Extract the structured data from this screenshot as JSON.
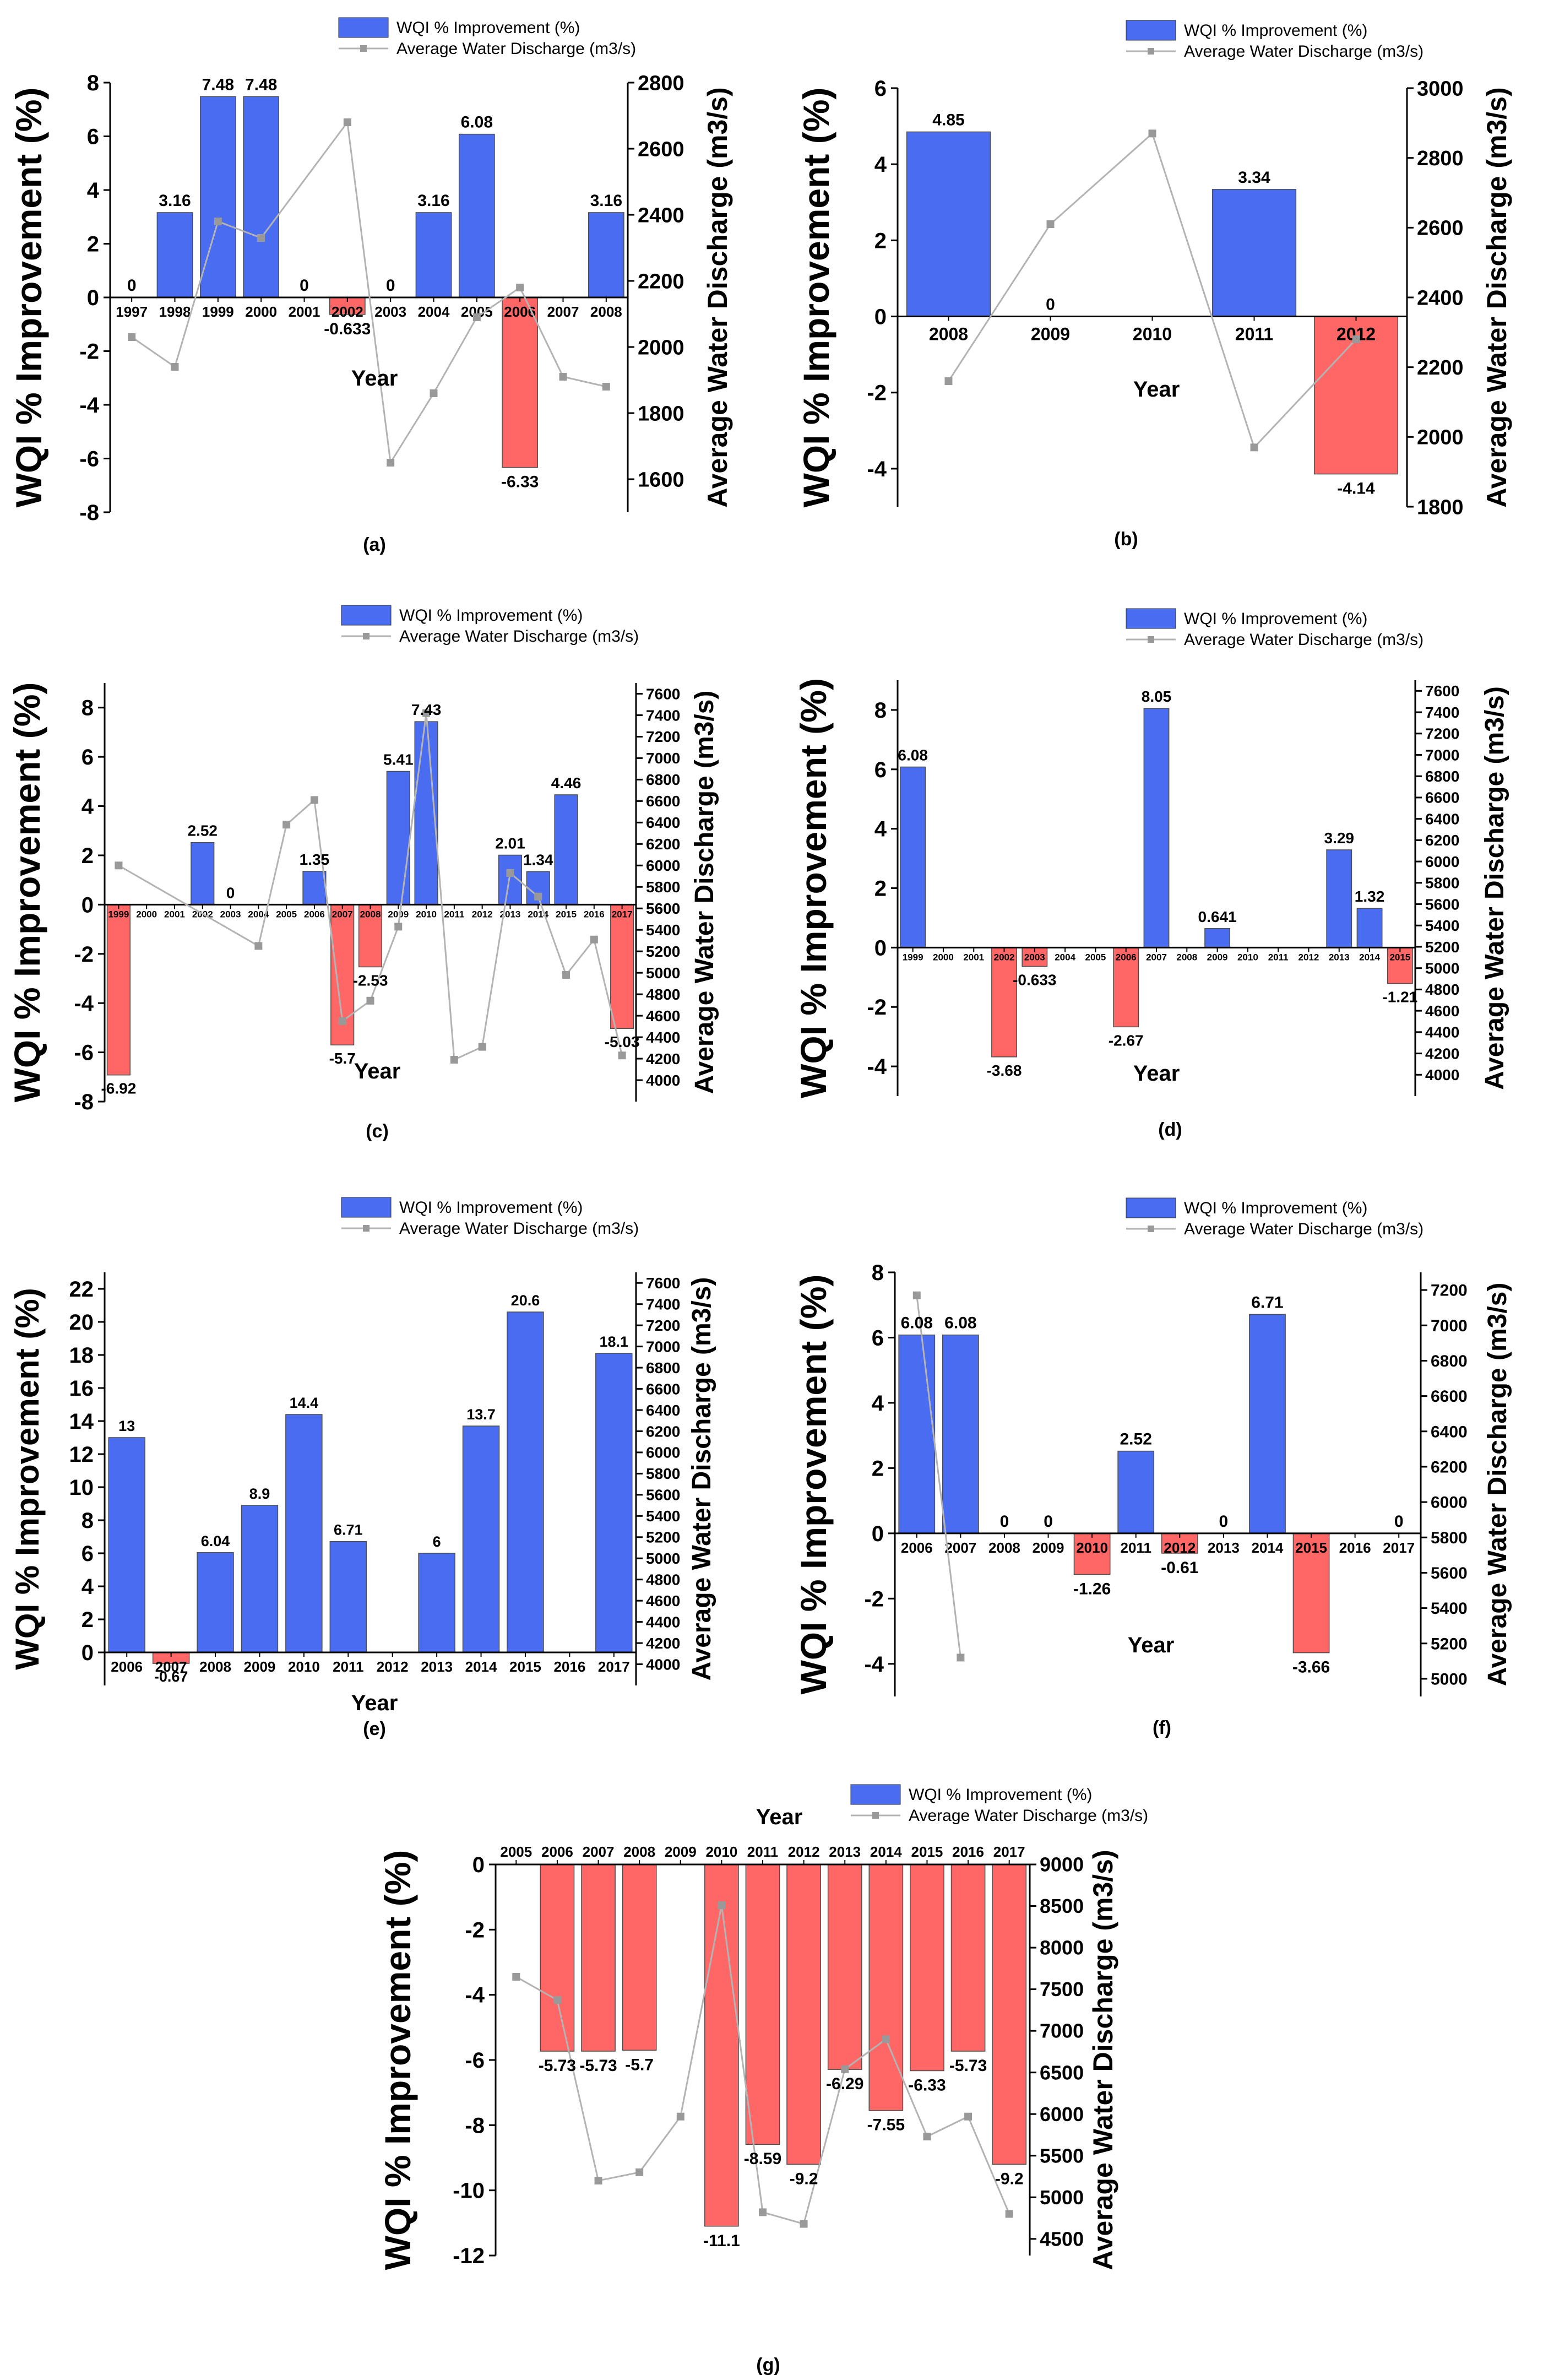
{
  "colors": {
    "positive_bar": "#4a6cf0",
    "negative_bar": "#ff6666",
    "line": "#b3b3b3",
    "marker": "#999999",
    "axis": "#000000",
    "right_axis": "#000000"
  },
  "chart_data": [
    {
      "panel": "(a)",
      "type": "bar+line",
      "legend": [
        "WQI % Improvement (%)",
        "Average Water Discharge (m3/s)"
      ],
      "xlabel": "Year",
      "ylabel": "WQI % Improvement (%)",
      "y2label": "Average Water Discharge (m3/s)",
      "categories": [
        "1997",
        "1998",
        "1999",
        "2000",
        "2001",
        "2002",
        "2003",
        "2004",
        "2005",
        "2006",
        "2007",
        "2008"
      ],
      "values": [
        0,
        3.16,
        7.48,
        7.48,
        0,
        -0.633,
        0,
        3.16,
        6.08,
        -6.33,
        null,
        3.16
      ],
      "bar_labels": [
        "0",
        "3.16",
        "7.48",
        "7.48",
        "0",
        "-0.633",
        "0",
        "3.16",
        "6.08",
        "-6.33",
        "",
        "3.16"
      ],
      "discharge": [
        2030,
        1940,
        2380,
        2330,
        null,
        2680,
        1650,
        1860,
        2090,
        2180,
        1910,
        1880
      ],
      "ylim": [
        -8,
        8
      ],
      "yticks": [
        "-8",
        "-6",
        "-4",
        "-2",
        "0",
        "2",
        "4",
        "6",
        "8"
      ],
      "y2lim": [
        1500,
        2800
      ],
      "y2ticks": [
        "1600",
        "1800",
        "2000",
        "2200",
        "2400",
        "2600",
        "2800"
      ]
    },
    {
      "panel": "(b)",
      "type": "bar+line",
      "legend": [
        "WQI % Improvement (%)",
        "Average Water Discharge (m3/s)"
      ],
      "xlabel": "Year",
      "ylabel": "WQI % Improvement (%)",
      "y2label": "Average Water Discharge (m3/s)",
      "categories": [
        "2008",
        "2009",
        "2010",
        "2011",
        "2012"
      ],
      "values": [
        4.85,
        0,
        null,
        3.34,
        -4.14
      ],
      "bar_labels": [
        "4.85",
        "0",
        "",
        "3.34",
        "-4.14"
      ],
      "discharge": [
        2160,
        2610,
        2870,
        1970,
        2280
      ],
      "ylim": [
        -5,
        6
      ],
      "yticks": [
        "-4",
        "-2",
        "0",
        "2",
        "4",
        "6"
      ],
      "y2lim": [
        1800,
        3000
      ],
      "y2ticks": [
        "1800",
        "2000",
        "2200",
        "2400",
        "2600",
        "2800",
        "3000"
      ]
    },
    {
      "panel": "(c)",
      "type": "bar+line",
      "legend": [
        "WQI % Improvement (%)",
        "Average Water Discharge (m3/s)"
      ],
      "xlabel": "Year",
      "ylabel": "WQI % Improvement (%)",
      "y2label": "Average Water Discharge (m3/s)",
      "categories": [
        "1999",
        "2000",
        "2001",
        "2002",
        "2003",
        "2004",
        "2005",
        "2006",
        "2007",
        "2008",
        "2009",
        "2010",
        "2011",
        "2012",
        "2013",
        "2014",
        "2015",
        "2016",
        "2017"
      ],
      "values": [
        -6.92,
        null,
        null,
        2.52,
        0,
        null,
        null,
        1.35,
        -5.7,
        -2.53,
        5.41,
        7.43,
        null,
        null,
        2.01,
        1.34,
        4.46,
        null,
        -5.03
      ],
      "bar_labels": [
        "-6.92",
        "",
        "",
        "2.52",
        "0",
        "",
        "",
        "1.35",
        "-5.7",
        "-2.53",
        "5.41",
        "7.43",
        "",
        "",
        "2.01",
        "1.34",
        "4.46",
        "",
        "-5.03"
      ],
      "discharge": [
        6000,
        null,
        null,
        null,
        null,
        5250,
        6380,
        6610,
        4550,
        4740,
        5430,
        7420,
        4190,
        4310,
        5930,
        5710,
        4980,
        5310,
        4230
      ],
      "ylim": [
        -8,
        9
      ],
      "yticks": [
        "-8",
        "-6",
        "-4",
        "-2",
        "0",
        "2",
        "4",
        "6",
        "8"
      ],
      "y2lim": [
        3800,
        7700
      ],
      "y2ticks": [
        "4000",
        "4200",
        "4400",
        "4600",
        "4800",
        "5000",
        "5200",
        "5400",
        "5600",
        "5800",
        "6000",
        "6200",
        "6400",
        "6600",
        "6800",
        "7000",
        "7200",
        "7400",
        "7600"
      ]
    },
    {
      "panel": "(d)",
      "type": "bar+line",
      "legend": [
        "WQI % Improvement (%)",
        "Average Water Discharge (m3/s)"
      ],
      "xlabel": "Year",
      "ylabel": "WQI % Improvement (%)",
      "y2label": "Average Water Discharge (m3/s)",
      "categories": [
        "1999",
        "2000",
        "2001",
        "2002",
        "2003",
        "2004",
        "2005",
        "2006",
        "2007",
        "2008",
        "2009",
        "2010",
        "2011",
        "2012",
        "2013",
        "2014",
        "2015"
      ],
      "values": [
        6.08,
        null,
        null,
        -3.68,
        -0.633,
        null,
        null,
        -2.67,
        8.05,
        null,
        0.641,
        null,
        null,
        null,
        3.29,
        1.32,
        -1.21
      ],
      "bar_labels": [
        "6.08",
        "",
        "",
        "-3.68",
        "-0.633",
        "",
        "",
        "-2.67",
        "8.05",
        "",
        "0.641",
        "",
        "",
        "",
        "3.29",
        "1.32",
        "-1.21"
      ],
      "discharge": [],
      "ylim": [
        -5,
        9
      ],
      "yticks": [
        "-4",
        "-2",
        "0",
        "2",
        "4",
        "6",
        "8"
      ],
      "y2lim": [
        3800,
        7700
      ],
      "y2ticks": [
        "4000",
        "4200",
        "4400",
        "4600",
        "4800",
        "5000",
        "5200",
        "5400",
        "5600",
        "5800",
        "6000",
        "6200",
        "6400",
        "6600",
        "6800",
        "7000",
        "7200",
        "7400",
        "7600"
      ]
    },
    {
      "panel": "(e)",
      "type": "bar+line",
      "legend": [
        "WQI % Improvement (%)",
        "Average Water Discharge (m3/s)"
      ],
      "xlabel": "Year",
      "ylabel": "WQI % Improvement (%)",
      "y2label": "Average Water Discharge (m3/s)",
      "categories": [
        "2006",
        "2007",
        "2008",
        "2009",
        "2010",
        "2011",
        "2012",
        "2013",
        "2014",
        "2015",
        "2016",
        "2017"
      ],
      "values": [
        13,
        -0.67,
        6.04,
        8.9,
        14.4,
        6.71,
        null,
        6,
        13.7,
        20.6,
        null,
        18.1
      ],
      "bar_labels": [
        "13",
        "-0.67",
        "6.04",
        "8.9",
        "14.4",
        "6.71",
        "",
        "6",
        "13.7",
        "20.6",
        "",
        "18.1"
      ],
      "discharge": [],
      "ylim": [
        -2,
        23
      ],
      "yticks": [
        "0",
        "2",
        "4",
        "6",
        "8",
        "10",
        "12",
        "14",
        "16",
        "18",
        "20",
        "22"
      ],
      "y2lim": [
        3800,
        7700
      ],
      "y2ticks": [
        "4000",
        "4200",
        "4400",
        "4600",
        "4800",
        "5000",
        "5200",
        "5400",
        "5600",
        "5800",
        "6000",
        "6200",
        "6400",
        "6600",
        "6800",
        "7000",
        "7200",
        "7400",
        "7600"
      ]
    },
    {
      "panel": "(f)",
      "type": "bar+line",
      "legend": [
        "WQI % Improvement (%)",
        "Average Water Discharge (m3/s)"
      ],
      "xlabel": "Year",
      "ylabel": "WQI % Improvement (%)",
      "y2label": "Average Water Discharge (m3/s)",
      "categories": [
        "2006",
        "2007",
        "2008",
        "2009",
        "2010",
        "2011",
        "2012",
        "2013",
        "2014",
        "2015",
        "2016",
        "2017"
      ],
      "values": [
        6.08,
        6.08,
        0,
        0,
        -1.26,
        2.52,
        -0.61,
        0,
        6.71,
        -3.66,
        null,
        0
      ],
      "bar_labels": [
        "6.08",
        "6.08",
        "0",
        "0",
        "-1.26",
        "2.52",
        "-0.61",
        "0",
        "6.71",
        "-3.66",
        "",
        "0"
      ],
      "discharge": [
        7170,
        5120,
        null,
        null,
        null,
        null,
        null,
        null,
        null,
        null,
        null,
        null
      ],
      "ylim": [
        -5,
        8
      ],
      "yticks": [
        "-4",
        "-2",
        "0",
        "2",
        "4",
        "6",
        "8"
      ],
      "y2lim": [
        4900,
        7300
      ],
      "y2ticks": [
        "5000",
        "5200",
        "5400",
        "5600",
        "5800",
        "6000",
        "6200",
        "6400",
        "6600",
        "6800",
        "7000",
        "7200"
      ]
    },
    {
      "panel": "(g)",
      "type": "bar+line",
      "legend": [
        "WQI % Improvement (%)",
        "Average Water Discharge (m3/s)"
      ],
      "xlabel": "Year",
      "ylabel": "WQI % Improvement (%)",
      "y2label": "Average Water Discharge (m3/s)",
      "categories": [
        "2005",
        "2006",
        "2007",
        "2008",
        "2009",
        "2010",
        "2011",
        "2012",
        "2013",
        "2014",
        "2015",
        "2016",
        "2017"
      ],
      "values": [
        null,
        -5.73,
        -5.73,
        -5.7,
        null,
        -11.1,
        -8.59,
        -9.2,
        -6.29,
        -7.55,
        -6.33,
        -5.73,
        -9.2
      ],
      "bar_labels": [
        "",
        "-5.73",
        "-5.73",
        "-5.7",
        "",
        "-11.1",
        "-8.59",
        "-9.2",
        "-6.29",
        "-7.55",
        "-6.33",
        "-5.73",
        "-9.2"
      ],
      "discharge": [
        7650,
        7370,
        5200,
        5300,
        5970,
        8510,
        4820,
        4680,
        6540,
        6900,
        5730,
        5970,
        4800
      ],
      "ylim": [
        -12,
        0
      ],
      "yticks": [
        "-12",
        "-10",
        "-8",
        "-6",
        "-4",
        "-2",
        "0"
      ],
      "y2lim": [
        4300,
        9000
      ],
      "y2ticks": [
        "4500",
        "5000",
        "5500",
        "6000",
        "6500",
        "7000",
        "7500",
        "8000",
        "8500",
        "9000"
      ]
    }
  ]
}
